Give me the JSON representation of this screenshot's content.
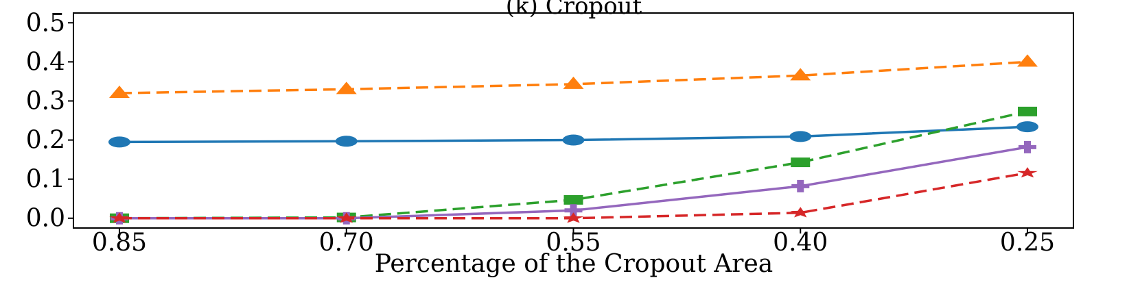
{
  "chart_data": {
    "type": "line",
    "title": "(k) Cropout",
    "xlabel": "Percentage of the Cropout Area",
    "ylabel": "",
    "categories": [
      "0.85",
      "0.70",
      "0.55",
      "0.40",
      "0.25"
    ],
    "ylim": [
      -0.025,
      0.525
    ],
    "yticks": [
      0.0,
      0.1,
      0.2,
      0.3,
      0.4,
      0.5
    ],
    "ytick_labels": [
      "0.0",
      "0.1",
      "0.2",
      "0.3",
      "0.4",
      "0.5"
    ],
    "grid": false,
    "legend": false,
    "series": [
      {
        "color": "#ff7f0e",
        "marker": "triangle",
        "dash": "dashed",
        "values": [
          0.32,
          0.33,
          0.343,
          0.365,
          0.4
        ]
      },
      {
        "color": "#1f77b4",
        "marker": "circle",
        "dash": "solid",
        "values": [
          0.195,
          0.197,
          0.2,
          0.209,
          0.234
        ]
      },
      {
        "color": "#2ca02c",
        "marker": "square",
        "dash": "dashed",
        "values": [
          0.0,
          0.002,
          0.047,
          0.143,
          0.273
        ]
      },
      {
        "color": "#9467bd",
        "marker": "plus",
        "dash": "solid",
        "values": [
          0.0,
          0.0,
          0.02,
          0.082,
          0.182
        ]
      },
      {
        "color": "#d62728",
        "marker": "star",
        "dash": "dashed",
        "values": [
          0.0,
          0.0,
          0.0,
          0.014,
          0.116
        ]
      }
    ]
  }
}
